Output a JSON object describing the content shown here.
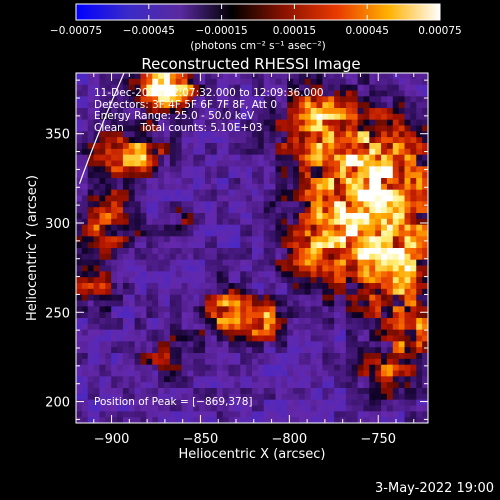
{
  "chart_data": {
    "type": "heatmap",
    "title": "Reconstructed RHESSI Image",
    "xlabel": "Heliocentric X (arcsec)",
    "ylabel": "Heliocentric Y (arcsec)",
    "xlim": [
      -920,
      -722
    ],
    "ylim": [
      188,
      384
    ],
    "x_ticks": [
      -900,
      -850,
      -800,
      -750
    ],
    "x_tick_labels": [
      "−900",
      "−850",
      "−800",
      "−750"
    ],
    "y_ticks": [
      200,
      250,
      300,
      350
    ],
    "y_tick_labels": [
      "200",
      "250",
      "300",
      "350"
    ],
    "colorbar": {
      "min": -0.00075,
      "max": 0.00075,
      "ticks": [
        -0.00075,
        -0.00045,
        -0.00015,
        0.00015,
        0.00045,
        0.00075
      ],
      "tick_labels": [
        "−0.00075",
        "−0.00045",
        "−0.00015",
        "0.00015",
        "0.00045",
        "0.00075"
      ],
      "units": "(photons cm⁻² s⁻¹ asec⁻²)",
      "colormap": [
        "#0000ff",
        "#3a2ac8",
        "#5a2aa0",
        "#000000",
        "#8a1200",
        "#e83800",
        "#ffb000",
        "#ffffff"
      ]
    },
    "annotations": [
      "11-Dec-2015 12:07:32.000 to 12:09:36.000",
      "Detectors: 3F 4F 5F 6F 7F 8F, Att 0",
      "Energy Range: 25.0 - 50.0 keV",
      "Clean     Total counts: 5.10E+03",
      "Position of Peak = [−869,378]"
    ],
    "peak": [
      -869,
      378
    ],
    "limb_arc": true
  },
  "footer": "3-May-2022 19:00"
}
